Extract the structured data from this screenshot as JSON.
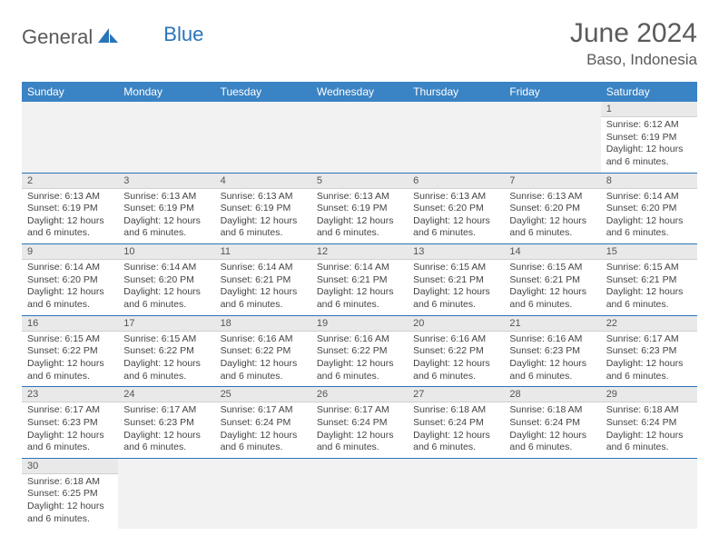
{
  "logo": {
    "general": "General",
    "blue": "Blue"
  },
  "title": "June 2024",
  "location": "Baso, Indonesia",
  "colors": {
    "header_bg": "#3a83c4",
    "border": "#2a74b8",
    "daynum_bg": "#e9e9e9",
    "text": "#444444"
  },
  "weekdays": [
    "Sunday",
    "Monday",
    "Tuesday",
    "Wednesday",
    "Thursday",
    "Friday",
    "Saturday"
  ],
  "rows": [
    [
      null,
      null,
      null,
      null,
      null,
      null,
      {
        "n": "1",
        "sr": "Sunrise: 6:12 AM",
        "ss": "Sunset: 6:19 PM",
        "dl": "Daylight: 12 hours and 6 minutes."
      }
    ],
    [
      {
        "n": "2",
        "sr": "Sunrise: 6:13 AM",
        "ss": "Sunset: 6:19 PM",
        "dl": "Daylight: 12 hours and 6 minutes."
      },
      {
        "n": "3",
        "sr": "Sunrise: 6:13 AM",
        "ss": "Sunset: 6:19 PM",
        "dl": "Daylight: 12 hours and 6 minutes."
      },
      {
        "n": "4",
        "sr": "Sunrise: 6:13 AM",
        "ss": "Sunset: 6:19 PM",
        "dl": "Daylight: 12 hours and 6 minutes."
      },
      {
        "n": "5",
        "sr": "Sunrise: 6:13 AM",
        "ss": "Sunset: 6:19 PM",
        "dl": "Daylight: 12 hours and 6 minutes."
      },
      {
        "n": "6",
        "sr": "Sunrise: 6:13 AM",
        "ss": "Sunset: 6:20 PM",
        "dl": "Daylight: 12 hours and 6 minutes."
      },
      {
        "n": "7",
        "sr": "Sunrise: 6:13 AM",
        "ss": "Sunset: 6:20 PM",
        "dl": "Daylight: 12 hours and 6 minutes."
      },
      {
        "n": "8",
        "sr": "Sunrise: 6:14 AM",
        "ss": "Sunset: 6:20 PM",
        "dl": "Daylight: 12 hours and 6 minutes."
      }
    ],
    [
      {
        "n": "9",
        "sr": "Sunrise: 6:14 AM",
        "ss": "Sunset: 6:20 PM",
        "dl": "Daylight: 12 hours and 6 minutes."
      },
      {
        "n": "10",
        "sr": "Sunrise: 6:14 AM",
        "ss": "Sunset: 6:20 PM",
        "dl": "Daylight: 12 hours and 6 minutes."
      },
      {
        "n": "11",
        "sr": "Sunrise: 6:14 AM",
        "ss": "Sunset: 6:21 PM",
        "dl": "Daylight: 12 hours and 6 minutes."
      },
      {
        "n": "12",
        "sr": "Sunrise: 6:14 AM",
        "ss": "Sunset: 6:21 PM",
        "dl": "Daylight: 12 hours and 6 minutes."
      },
      {
        "n": "13",
        "sr": "Sunrise: 6:15 AM",
        "ss": "Sunset: 6:21 PM",
        "dl": "Daylight: 12 hours and 6 minutes."
      },
      {
        "n": "14",
        "sr": "Sunrise: 6:15 AM",
        "ss": "Sunset: 6:21 PM",
        "dl": "Daylight: 12 hours and 6 minutes."
      },
      {
        "n": "15",
        "sr": "Sunrise: 6:15 AM",
        "ss": "Sunset: 6:21 PM",
        "dl": "Daylight: 12 hours and 6 minutes."
      }
    ],
    [
      {
        "n": "16",
        "sr": "Sunrise: 6:15 AM",
        "ss": "Sunset: 6:22 PM",
        "dl": "Daylight: 12 hours and 6 minutes."
      },
      {
        "n": "17",
        "sr": "Sunrise: 6:15 AM",
        "ss": "Sunset: 6:22 PM",
        "dl": "Daylight: 12 hours and 6 minutes."
      },
      {
        "n": "18",
        "sr": "Sunrise: 6:16 AM",
        "ss": "Sunset: 6:22 PM",
        "dl": "Daylight: 12 hours and 6 minutes."
      },
      {
        "n": "19",
        "sr": "Sunrise: 6:16 AM",
        "ss": "Sunset: 6:22 PM",
        "dl": "Daylight: 12 hours and 6 minutes."
      },
      {
        "n": "20",
        "sr": "Sunrise: 6:16 AM",
        "ss": "Sunset: 6:22 PM",
        "dl": "Daylight: 12 hours and 6 minutes."
      },
      {
        "n": "21",
        "sr": "Sunrise: 6:16 AM",
        "ss": "Sunset: 6:23 PM",
        "dl": "Daylight: 12 hours and 6 minutes."
      },
      {
        "n": "22",
        "sr": "Sunrise: 6:17 AM",
        "ss": "Sunset: 6:23 PM",
        "dl": "Daylight: 12 hours and 6 minutes."
      }
    ],
    [
      {
        "n": "23",
        "sr": "Sunrise: 6:17 AM",
        "ss": "Sunset: 6:23 PM",
        "dl": "Daylight: 12 hours and 6 minutes."
      },
      {
        "n": "24",
        "sr": "Sunrise: 6:17 AM",
        "ss": "Sunset: 6:23 PM",
        "dl": "Daylight: 12 hours and 6 minutes."
      },
      {
        "n": "25",
        "sr": "Sunrise: 6:17 AM",
        "ss": "Sunset: 6:24 PM",
        "dl": "Daylight: 12 hours and 6 minutes."
      },
      {
        "n": "26",
        "sr": "Sunrise: 6:17 AM",
        "ss": "Sunset: 6:24 PM",
        "dl": "Daylight: 12 hours and 6 minutes."
      },
      {
        "n": "27",
        "sr": "Sunrise: 6:18 AM",
        "ss": "Sunset: 6:24 PM",
        "dl": "Daylight: 12 hours and 6 minutes."
      },
      {
        "n": "28",
        "sr": "Sunrise: 6:18 AM",
        "ss": "Sunset: 6:24 PM",
        "dl": "Daylight: 12 hours and 6 minutes."
      },
      {
        "n": "29",
        "sr": "Sunrise: 6:18 AM",
        "ss": "Sunset: 6:24 PM",
        "dl": "Daylight: 12 hours and 6 minutes."
      }
    ],
    [
      {
        "n": "30",
        "sr": "Sunrise: 6:18 AM",
        "ss": "Sunset: 6:25 PM",
        "dl": "Daylight: 12 hours and 6 minutes."
      },
      null,
      null,
      null,
      null,
      null,
      null
    ]
  ]
}
